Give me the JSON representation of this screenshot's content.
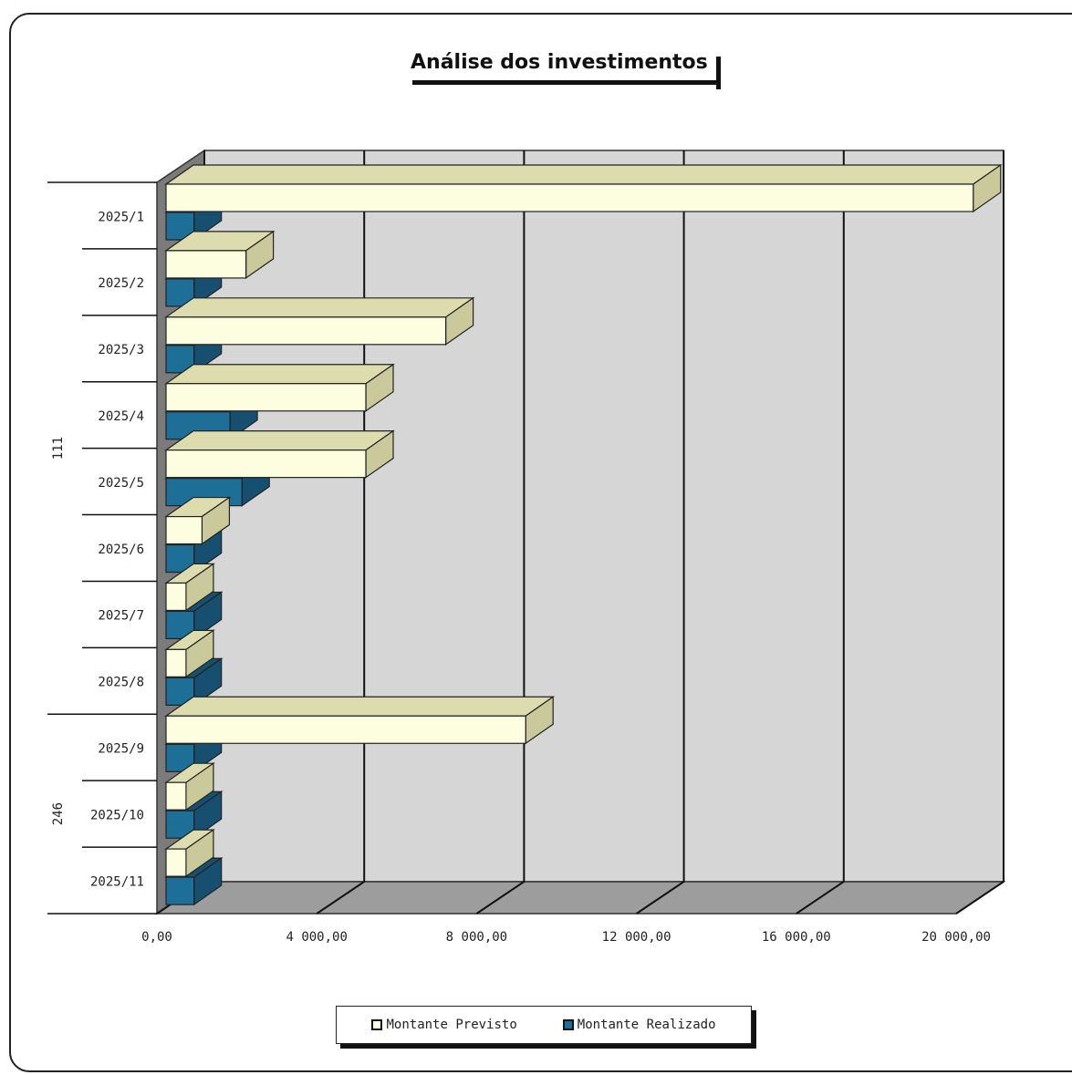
{
  "chart_data": {
    "type": "bar",
    "orientation": "horizontal",
    "title": "Análise dos investimentos",
    "groups": [
      {
        "label": "111",
        "categories": [
          "2025/1",
          "2025/2",
          "2025/3",
          "2025/4",
          "2025/5",
          "2025/6",
          "2025/7",
          "2025/8"
        ]
      },
      {
        "label": "246",
        "categories": [
          "2025/9",
          "2025/10",
          "2025/11"
        ]
      }
    ],
    "categories": [
      "2025/1",
      "2025/2",
      "2025/3",
      "2025/4",
      "2025/5",
      "2025/6",
      "2025/7",
      "2025/8",
      "2025/9",
      "2025/10",
      "2025/11"
    ],
    "series": [
      {
        "name": "Montante Previsto",
        "color": "#fdfde0",
        "values": [
          20200,
          2000,
          7000,
          5000,
          5000,
          900,
          500,
          500,
          9000,
          500,
          500
        ]
      },
      {
        "name": "Montante Realizado",
        "color": "#1e6f98",
        "values": [
          700,
          700,
          700,
          1600,
          1900,
          700,
          700,
          700,
          700,
          700,
          700
        ]
      }
    ],
    "x_ticks": [
      "0,00",
      "4 000,00",
      "8 000,00",
      "12 000,00",
      "16 000,00",
      "20 000,00"
    ],
    "xlim": [
      0,
      20000
    ],
    "grid": true,
    "legend_position": "bottom"
  },
  "colors": {
    "wall": "#d6d6d6",
    "floor": "#9d9d9d",
    "bar_top": "#dcdcae",
    "realized_top": "#174f70"
  }
}
